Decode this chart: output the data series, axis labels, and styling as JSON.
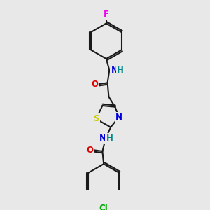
{
  "background_color": "#e8e8e8",
  "bond_color": "#1a1a1a",
  "atom_colors": {
    "N": "#0000dd",
    "O": "#dd0000",
    "S": "#cccc00",
    "Cl": "#00aa00",
    "F": "#ee00ee",
    "C": "#1a1a1a"
  },
  "font_size": 8.5,
  "lw": 1.5
}
